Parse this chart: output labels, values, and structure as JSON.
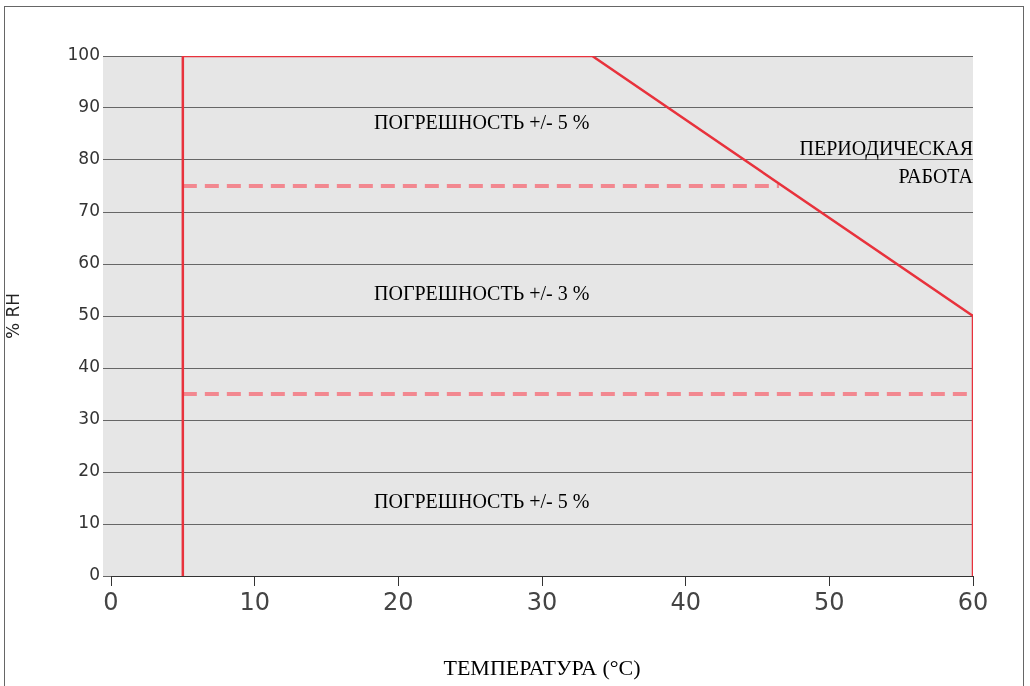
{
  "chart_data": {
    "type": "line",
    "xlabel": "ТЕМПЕРАТУРА (°C)",
    "ylabel": "% RH",
    "xlim": [
      0,
      60
    ],
    "xticks": [
      0,
      10,
      20,
      30,
      40,
      50,
      60
    ],
    "ylim": [
      0,
      100
    ],
    "yticks": [
      0,
      10,
      20,
      30,
      40,
      50,
      60,
      70,
      80,
      90,
      100
    ],
    "grid": "y",
    "marker": "none",
    "series": [
      {
        "color": "#e8323c",
        "x": [
          5,
          5,
          33.5,
          60,
          60
        ],
        "values": [
          0,
          100,
          100,
          50,
          0
        ]
      },
      {
        "color": "#f28890",
        "line_style": "dashed",
        "x": [
          5,
          46.5
        ],
        "values": [
          75,
          75
        ]
      },
      {
        "color": "#f28890",
        "line_style": "dashed",
        "x": [
          5,
          60
        ],
        "values": [
          35,
          35
        ]
      }
    ],
    "annotations": [
      "ПОГРЕШНОСТЬ +/- 5 %",
      "ПЕРИОДИЧЕСКАЯ",
      "РАБОТА",
      "ПОГРЕШНОСТЬ +/- 3 %",
      "ПОГРЕШНОСТЬ +/- 5 %"
    ]
  }
}
